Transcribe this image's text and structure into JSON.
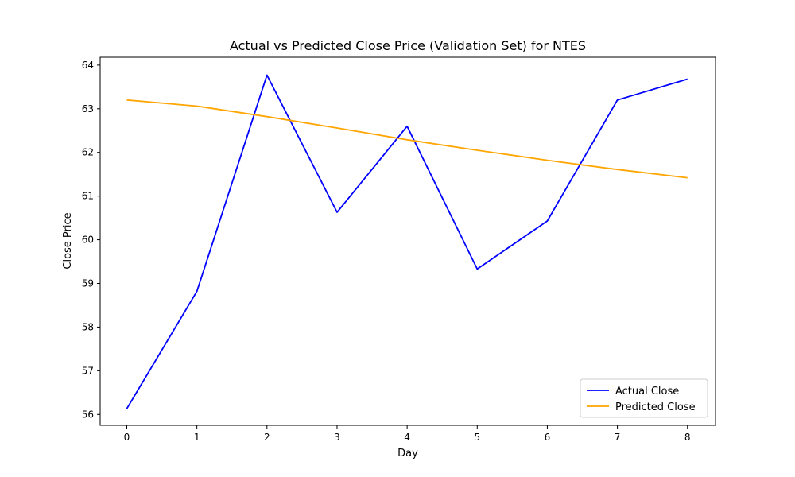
{
  "chart_data": {
    "type": "line",
    "title": "Actual vs Predicted Close Price (Validation Set) for NTES",
    "xlabel": "Day",
    "ylabel": "Close Price",
    "x": [
      0,
      1,
      2,
      3,
      4,
      5,
      6,
      7,
      8
    ],
    "xlim": [
      -0.38,
      8.4
    ],
    "ylim": [
      55.75,
      64.18
    ],
    "xticks": [
      0,
      1,
      2,
      3,
      4,
      5,
      6,
      7,
      8
    ],
    "yticks": [
      56,
      57,
      58,
      59,
      60,
      61,
      62,
      63,
      64
    ],
    "grid": false,
    "legend_position": "lower-right",
    "series": [
      {
        "name": "Actual Close",
        "color": "#0000ff",
        "values": [
          56.13,
          58.82,
          63.77,
          60.63,
          62.6,
          59.33,
          60.43,
          63.2,
          63.68
        ]
      },
      {
        "name": "Predicted Close",
        "color": "#ffa500",
        "values": [
          63.2,
          63.06,
          62.82,
          62.56,
          62.29,
          62.05,
          61.82,
          61.61,
          61.42
        ]
      }
    ]
  }
}
